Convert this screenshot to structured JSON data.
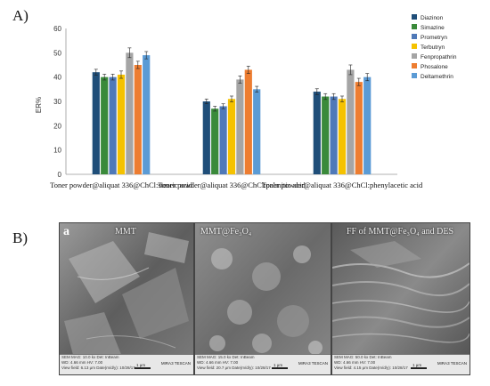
{
  "panel_a_label": "A)",
  "panel_b_label": "B)",
  "chart_data": {
    "type": "bar",
    "title": "",
    "xlabel": "",
    "ylabel": "ER%",
    "ylim": [
      0,
      60
    ],
    "yticks": [
      0,
      10,
      20,
      30,
      40,
      50,
      60
    ],
    "grid": false,
    "legend_position": "right",
    "categories": [
      "Toner powder@aliquat 336@ChCl:stearic acid",
      "Toner powder@aliquat 336@ChCl:palmitic acid",
      "Toner powder@aliquat 336@ChCl:phenylacetic acid"
    ],
    "series": [
      {
        "name": "Diazinon",
        "color": "#1f4e79",
        "values": [
          42,
          30,
          34
        ],
        "errors": [
          1.2,
          1.0,
          1.2
        ]
      },
      {
        "name": "Simazine",
        "color": "#3a8a3a",
        "values": [
          40,
          27,
          32
        ],
        "errors": [
          1.2,
          1.0,
          1.2
        ]
      },
      {
        "name": "Prometryn",
        "color": "#4f79b8",
        "values": [
          40,
          28,
          32
        ],
        "errors": [
          1.2,
          1.0,
          1.2
        ]
      },
      {
        "name": "Terbutryn",
        "color": "#f5c200",
        "values": [
          41,
          31,
          31
        ],
        "errors": [
          1.5,
          1.2,
          1.2
        ]
      },
      {
        "name": "Fenpropathrin",
        "color": "#a5a5a5",
        "values": [
          50,
          39,
          43
        ],
        "errors": [
          2.0,
          1.5,
          2.0
        ]
      },
      {
        "name": "Phosalone",
        "color": "#ed7d31",
        "values": [
          45,
          43,
          38
        ],
        "errors": [
          1.5,
          1.5,
          1.5
        ]
      },
      {
        "name": "Deltamethrin",
        "color": "#5b9bd5",
        "values": [
          49,
          35,
          40
        ],
        "errors": [
          1.5,
          1.2,
          1.5
        ]
      }
    ]
  },
  "sem_images": [
    {
      "letter": "a",
      "title": "MMT",
      "bar_lines": [
        "SEM MAG: 10.0 kx   Det: InBeam",
        "WD: 4.66 mm   HV: 7.00",
        "View field: 6.13 μm   Date(m/d/y): 10/28/17"
      ],
      "scale": "1 μm",
      "logo": "MIRA3 TESCAN"
    },
    {
      "letter": "",
      "title": "MMT@Fe₃O₄",
      "bar_lines": [
        "SEM MAG: 15.0 kx   Det: InBeam",
        "WD: 4.66 mm   HV: 7.00",
        "View field: 20.7 μm   Date(m/d/y): 10/28/17"
      ],
      "scale": "1 μm",
      "logo": "MIRA3 TESCAN"
    },
    {
      "letter": "",
      "title": "FF of MMT@Fe₃O₄ and DES",
      "bar_lines": [
        "SEM MAG: 50.0 kx   Det: InBeam",
        "WD: 4.66 mm   HV: 7.00",
        "View field: 4.15 μm   Date(m/d/y): 10/28/17"
      ],
      "scale": "1 μm",
      "logo": "MIRA3 TESCAN"
    }
  ]
}
